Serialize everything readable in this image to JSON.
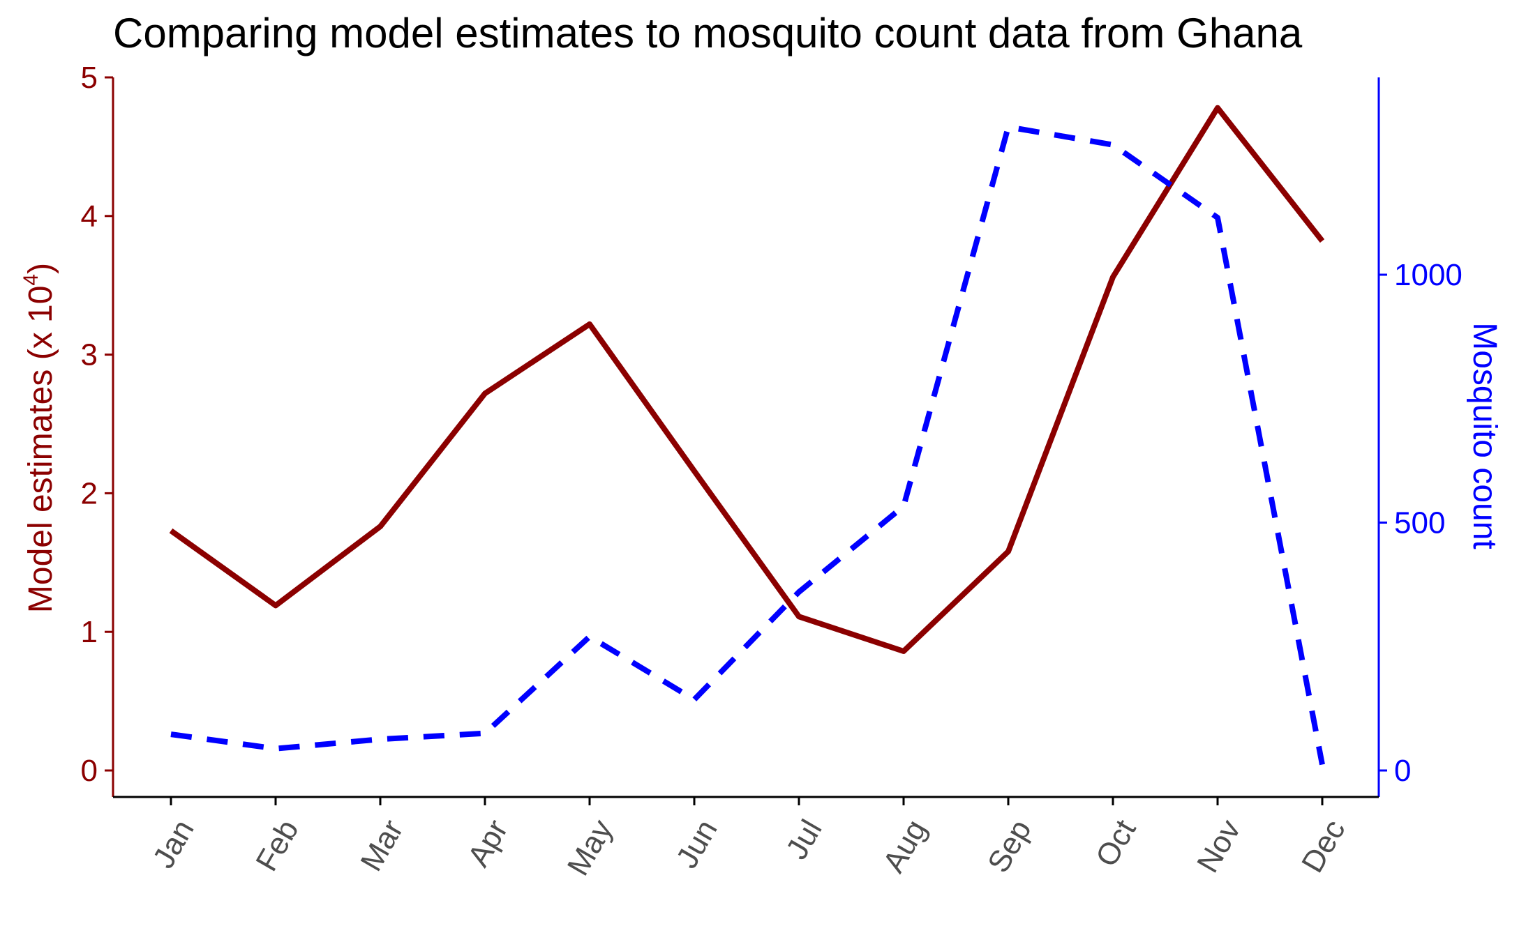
{
  "chart_data": {
    "type": "line",
    "title": "Comparing model estimates to mosquito count data from Ghana",
    "categories": [
      "Jan",
      "Feb",
      "Mar",
      "Apr",
      "May",
      "Jun",
      "Jul",
      "Aug",
      "Sep",
      "Oct",
      "Nov",
      "Dec"
    ],
    "series": [
      {
        "axis": "left",
        "color": "#8b0000",
        "style": "solid",
        "values": [
          1.73,
          1.19,
          1.76,
          2.72,
          3.22,
          2.16,
          1.11,
          0.86,
          1.58,
          3.56,
          4.78,
          3.82
        ]
      },
      {
        "axis": "right",
        "color": "#0000ff",
        "style": "dashed",
        "values": [
          73,
          44,
          63,
          75,
          270,
          143,
          360,
          533,
          1298,
          1262,
          1115,
          12
        ]
      }
    ],
    "y_left": {
      "label_main": "Model estimates (x 10",
      "label_sup": "4",
      "label_close": ")",
      "ticks": [
        "0",
        "1",
        "2",
        "3",
        "4",
        "5"
      ],
      "range": [
        0,
        5
      ],
      "color": "#8b0000"
    },
    "y_right": {
      "label": "Mosquito count",
      "ticks": [
        "0",
        "500",
        "1000"
      ],
      "tick_values": [
        0,
        500,
        1000
      ],
      "range": [
        0,
        1400
      ],
      "color": "#0000ff"
    },
    "grid": false,
    "legend": "none"
  }
}
